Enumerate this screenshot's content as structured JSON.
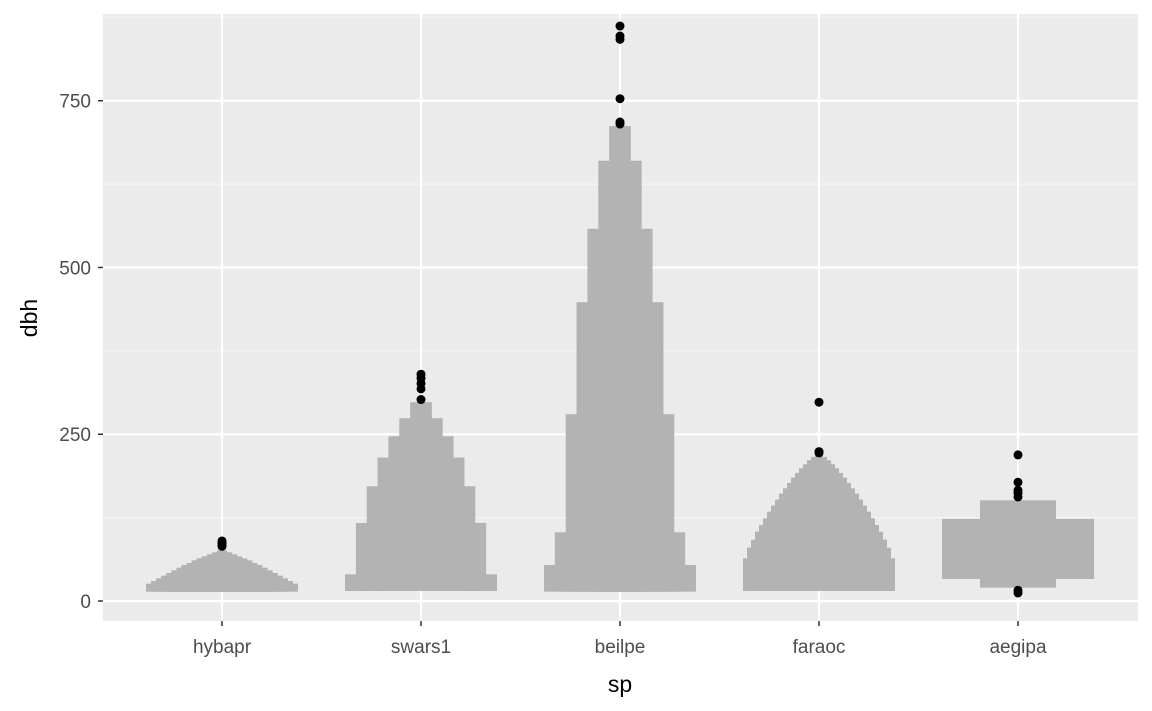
{
  "colors": {
    "panel_background": "#ebebeb",
    "grid_major": "#ffffff",
    "grid_minor": "#f5f5f5",
    "box_fill": "#b3b3b3",
    "outlier": "#000000",
    "tick_text": "#4d4d4d",
    "title_text": "#000000"
  },
  "chart_data": {
    "type": "letter-value boxplot",
    "xlabel": "sp",
    "ylabel": "dbh",
    "categories": [
      "hybapr",
      "swars1",
      "beilpe",
      "faraoc",
      "aegipa"
    ],
    "ylim": [
      -30,
      880
    ],
    "y_ticks": [
      0,
      250,
      500,
      750
    ],
    "grid": true,
    "legend": "none",
    "series": [
      {
        "category": "hybapr",
        "levels": [
          [
            26,
            14
          ],
          [
            30,
            14
          ],
          [
            34,
            14
          ],
          [
            38,
            14
          ],
          [
            42,
            14
          ],
          [
            46,
            14
          ],
          [
            50,
            14
          ],
          [
            54,
            14
          ],
          [
            57,
            14
          ],
          [
            61,
            14
          ],
          [
            64,
            14
          ],
          [
            67,
            14
          ],
          [
            70,
            14
          ],
          [
            73,
            14
          ],
          [
            76,
            14
          ]
        ],
        "outliers": [
          82,
          84,
          86,
          88,
          90
        ]
      },
      {
        "category": "swars1",
        "levels": [
          [
            40,
            15
          ],
          [
            117,
            15
          ],
          [
            172,
            15
          ],
          [
            215,
            15
          ],
          [
            247,
            15
          ],
          [
            274,
            15
          ],
          [
            298,
            15
          ]
        ],
        "outliers": [
          302,
          318,
          326,
          334,
          340
        ]
      },
      {
        "category": "beilpe",
        "levels": [
          [
            54,
            14
          ],
          [
            103,
            14
          ],
          [
            280,
            14
          ],
          [
            448,
            14
          ],
          [
            558,
            14
          ],
          [
            660,
            14
          ],
          [
            712,
            14
          ]
        ],
        "outliers": [
          715,
          718,
          753,
          842,
          847,
          862
        ]
      },
      {
        "category": "faraoc",
        "levels": [
          [
            64,
            15
          ],
          [
            80,
            15
          ],
          [
            92,
            15
          ],
          [
            104,
            15
          ],
          [
            114,
            15
          ],
          [
            124,
            15
          ],
          [
            134,
            15
          ],
          [
            143,
            15
          ],
          [
            152,
            15
          ],
          [
            161,
            15
          ],
          [
            169,
            15
          ],
          [
            177,
            15
          ],
          [
            185,
            15
          ],
          [
            192,
            15
          ],
          [
            199,
            15
          ],
          [
            205,
            15
          ],
          [
            211,
            15
          ],
          [
            216,
            15
          ],
          [
            220,
            15
          ]
        ],
        "outliers": [
          222,
          224,
          298
        ]
      },
      {
        "category": "aegipa",
        "levels": [
          [
            123,
            33
          ],
          [
            151,
            20
          ]
        ],
        "outliers": [
          12,
          16,
          156,
          162,
          166,
          178,
          219
        ]
      }
    ]
  }
}
